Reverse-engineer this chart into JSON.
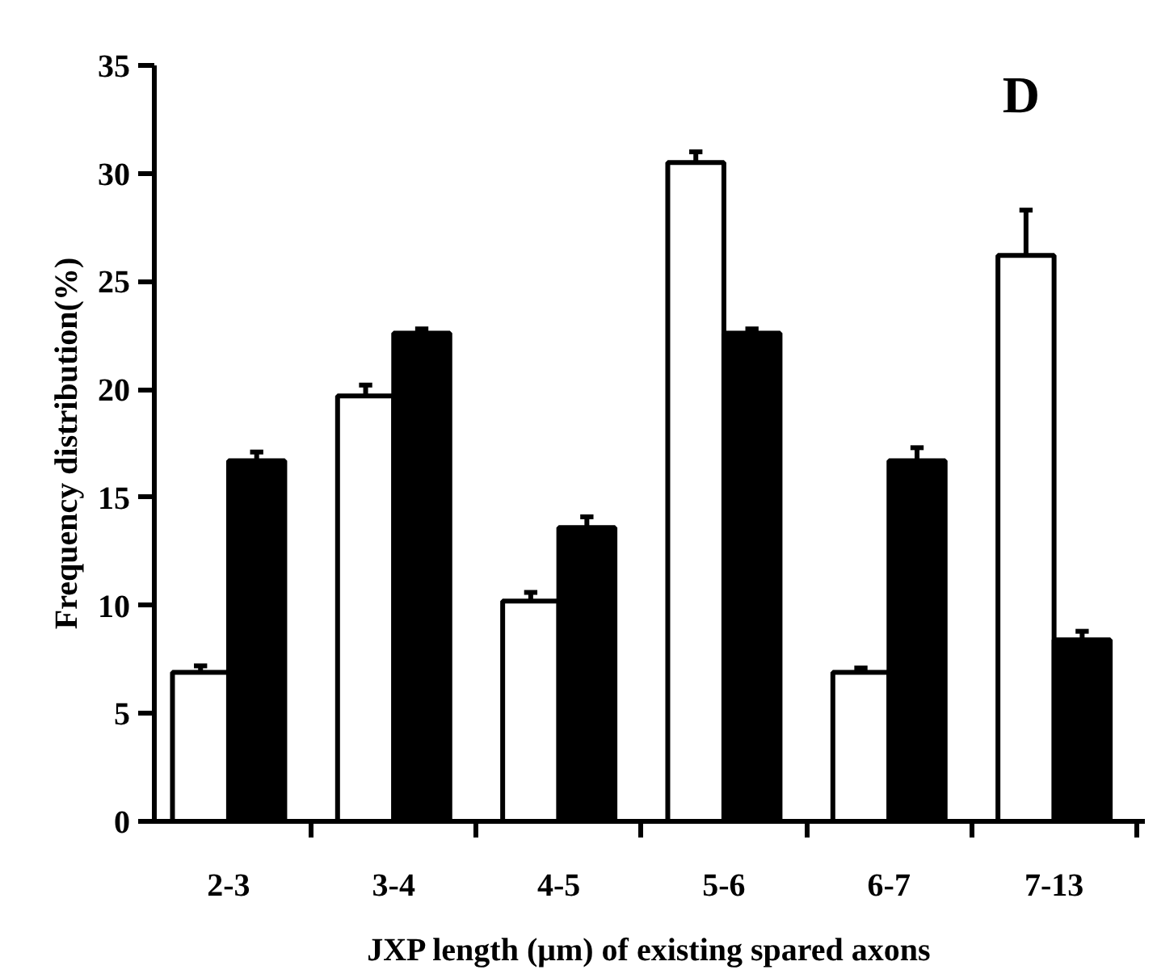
{
  "chart_data": {
    "type": "bar",
    "categories": [
      "2-3",
      "3-4",
      "4-5",
      "5-6",
      "6-7",
      "7-13"
    ],
    "series": [
      {
        "color": "#ffffff",
        "values": [
          6.9,
          19.7,
          10.2,
          30.5,
          6.9,
          26.2
        ],
        "errors": [
          [
            6.9,
            7.2
          ],
          [
            19.7,
            20.2
          ],
          [
            10.2,
            10.6
          ],
          [
            30.5,
            31.0
          ],
          [
            6.9,
            7.1
          ],
          [
            26.2,
            28.3
          ]
        ]
      },
      {
        "color": "#000000",
        "values": [
          16.7,
          22.6,
          13.6,
          22.6,
          16.7,
          8.4
        ],
        "errors": [
          [
            16.7,
            17.1
          ],
          [
            22.6,
            22.8
          ],
          [
            13.6,
            14.1
          ],
          [
            22.6,
            22.8
          ],
          [
            16.7,
            17.3
          ],
          [
            8.4,
            8.8
          ]
        ]
      }
    ],
    "ylim": [
      0,
      35
    ],
    "yticks": [
      0,
      5,
      10,
      15,
      20,
      25,
      30,
      35
    ],
    "xlabel": "JXP length (μm) of existing spared axons",
    "ylabel": "Frequency distribution(%)",
    "annotations": [
      "D"
    ],
    "grid": false
  }
}
